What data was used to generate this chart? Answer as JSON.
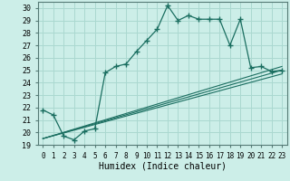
{
  "title": "",
  "xlabel": "Humidex (Indice chaleur)",
  "bg_color": "#cceee8",
  "grid_color": "#aad8d0",
  "line_color": "#1a6e60",
  "xlim": [
    -0.5,
    23.5
  ],
  "ylim": [
    19,
    30.5
  ],
  "xticks": [
    0,
    1,
    2,
    3,
    4,
    5,
    6,
    7,
    8,
    9,
    10,
    11,
    12,
    13,
    14,
    15,
    16,
    17,
    18,
    19,
    20,
    21,
    22,
    23
  ],
  "yticks": [
    19,
    20,
    21,
    22,
    23,
    24,
    25,
    26,
    27,
    28,
    29,
    30
  ],
  "main_x": [
    0,
    1,
    2,
    3,
    4,
    5,
    6,
    7,
    8,
    9,
    10,
    11,
    12,
    13,
    14,
    15,
    16,
    17,
    18,
    19,
    20,
    21,
    22,
    23
  ],
  "main_y": [
    21.8,
    21.4,
    19.7,
    19.4,
    20.1,
    20.3,
    24.8,
    25.3,
    25.5,
    26.5,
    27.4,
    28.3,
    30.2,
    29.0,
    29.4,
    29.1,
    29.1,
    29.1,
    27.0,
    29.1,
    25.2,
    25.3,
    24.9,
    25.0
  ],
  "line2_x": [
    0,
    23
  ],
  "line2_y": [
    19.5,
    25.0
  ],
  "line3_x": [
    0,
    23
  ],
  "line3_y": [
    19.5,
    25.3
  ],
  "line4_x": [
    0,
    23
  ],
  "line4_y": [
    19.5,
    24.7
  ]
}
